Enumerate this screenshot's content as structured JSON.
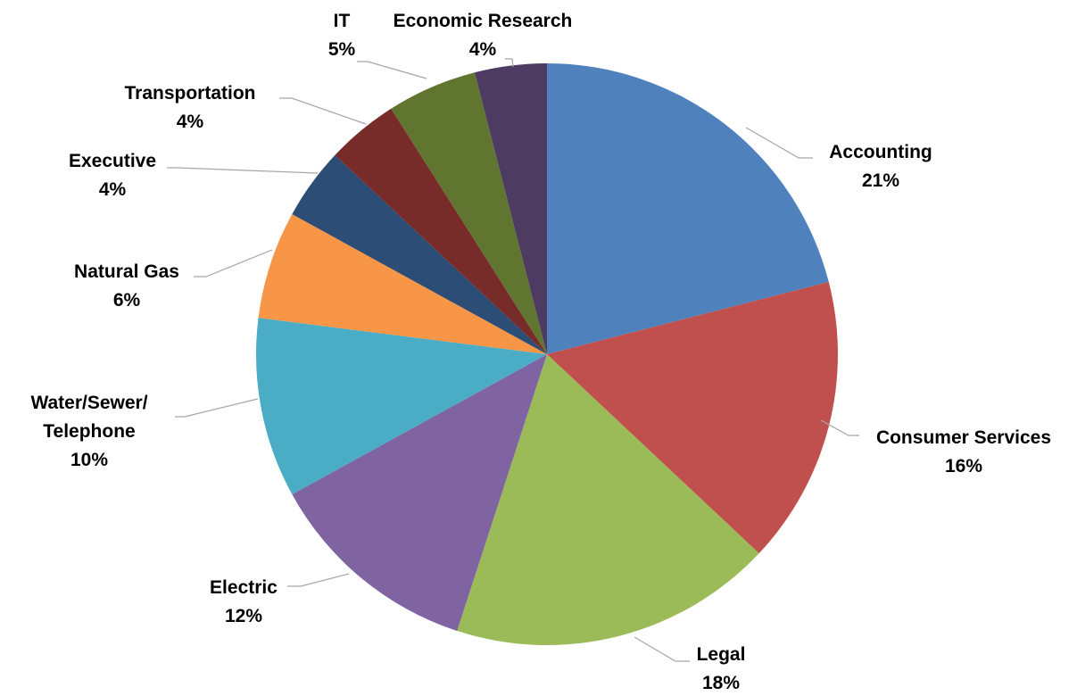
{
  "chart_data": {
    "type": "pie",
    "title": "",
    "start_angle_deg": 0,
    "direction": "clockwise",
    "slices": [
      {
        "name_lines": [
          "Accounting"
        ],
        "percent_label": "21%",
        "value": 21,
        "color": "#4f81bd"
      },
      {
        "name_lines": [
          "Consumer Services"
        ],
        "percent_label": "16%",
        "value": 16,
        "color": "#c0504d"
      },
      {
        "name_lines": [
          "Legal"
        ],
        "percent_label": "18%",
        "value": 18,
        "color": "#9bbb59"
      },
      {
        "name_lines": [
          "Electric"
        ],
        "percent_label": "12%",
        "value": 12,
        "color": "#8064a2"
      },
      {
        "name_lines": [
          "Water/Sewer/",
          "Telephone"
        ],
        "percent_label": "10%",
        "value": 10,
        "color": "#4bacc6"
      },
      {
        "name_lines": [
          "Natural Gas"
        ],
        "percent_label": "6%",
        "value": 6,
        "color": "#f79646"
      },
      {
        "name_lines": [
          "Executive"
        ],
        "percent_label": "4%",
        "value": 4,
        "color": "#2c4d75"
      },
      {
        "name_lines": [
          "Transportation"
        ],
        "percent_label": "4%",
        "value": 4,
        "color": "#772c2a"
      },
      {
        "name_lines": [
          "IT"
        ],
        "percent_label": "5%",
        "value": 5,
        "color": "#5f7530"
      },
      {
        "name_lines": [
          "Economic Research"
        ],
        "percent_label": "4%",
        "value": 4,
        "color": "#4d3b62"
      }
    ]
  }
}
